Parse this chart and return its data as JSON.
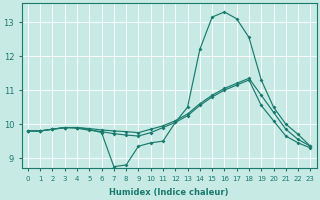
{
  "xlabel": "Humidex (Indice chaleur)",
  "background_color": "#c8eae4",
  "grid_color": "#ffffff",
  "line_color": "#1a7a6e",
  "xlim": [
    -0.5,
    23.5
  ],
  "ylim": [
    8.7,
    13.55
  ],
  "yticks": [
    9,
    10,
    11,
    12,
    13
  ],
  "xticks": [
    0,
    1,
    2,
    3,
    4,
    5,
    6,
    7,
    8,
    9,
    10,
    11,
    12,
    13,
    14,
    15,
    16,
    17,
    18,
    19,
    20,
    21,
    22,
    23
  ],
  "curve1": [
    9.8,
    9.8,
    9.85,
    9.9,
    9.9,
    9.85,
    9.75,
    8.75,
    8.8,
    9.35,
    9.45,
    9.5,
    10.05,
    10.5,
    12.2,
    13.15,
    13.3,
    13.1,
    12.55,
    11.3,
    10.5,
    10.0,
    9.7,
    9.35
  ],
  "curve2": [
    9.8,
    9.8,
    9.85,
    9.9,
    9.9,
    9.87,
    9.83,
    9.8,
    9.78,
    9.75,
    9.85,
    9.95,
    10.1,
    10.3,
    10.6,
    10.85,
    11.05,
    11.2,
    11.35,
    10.85,
    10.35,
    9.85,
    9.55,
    9.35
  ],
  "curve3": [
    9.8,
    9.8,
    9.85,
    9.9,
    9.88,
    9.82,
    9.78,
    9.72,
    9.68,
    9.65,
    9.75,
    9.9,
    10.05,
    10.25,
    10.55,
    10.8,
    11.0,
    11.15,
    11.3,
    10.55,
    10.1,
    9.65,
    9.45,
    9.3
  ]
}
